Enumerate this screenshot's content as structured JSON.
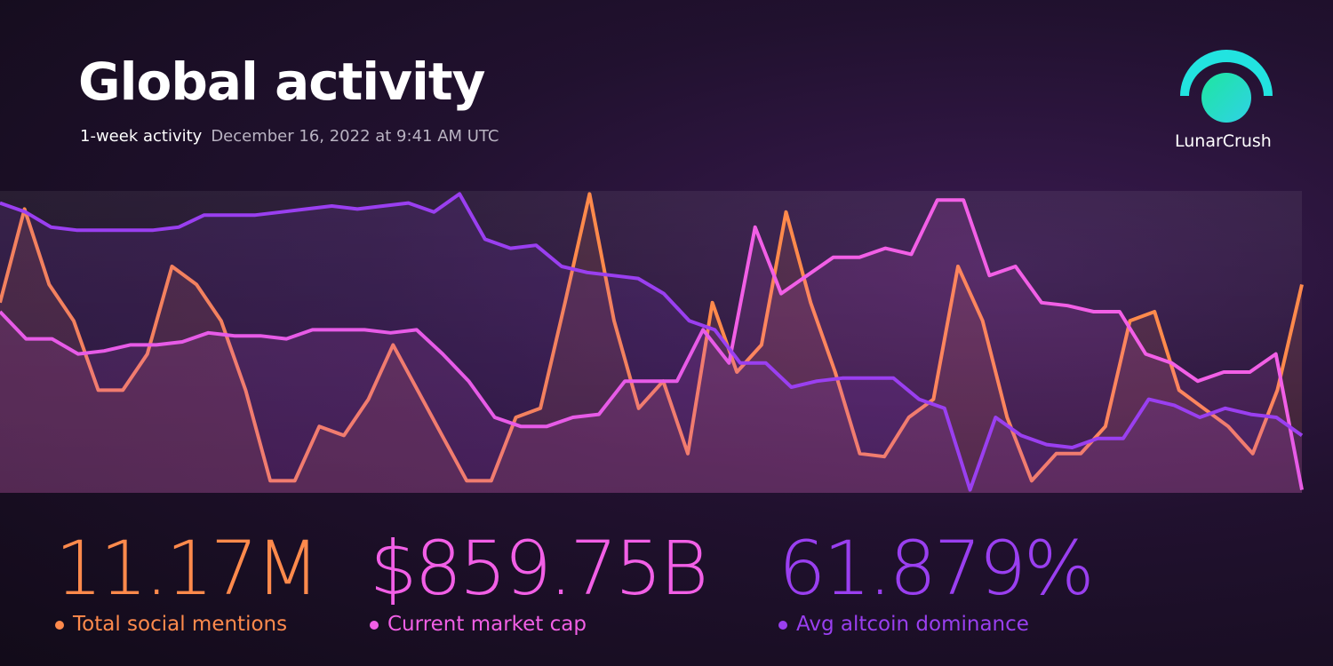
{
  "header": {
    "title": "Global activity",
    "subtitle": "1-week activity",
    "timestamp": "December 16, 2022 at 9:41 AM UTC",
    "brand": "LunarCrush"
  },
  "chart_data": {
    "type": "line",
    "ylim": [
      0,
      100
    ],
    "series": [
      {
        "name": "Total social mentions",
        "color": "#ff8a4c",
        "values": [
          63,
          94,
          69,
          57,
          34,
          34,
          46,
          75,
          69,
          57,
          34,
          4,
          4,
          22,
          19,
          31,
          49,
          34,
          19,
          4,
          4,
          25,
          28,
          63,
          99,
          57,
          28,
          37,
          13,
          63,
          40,
          49,
          93,
          63,
          40,
          13,
          12,
          25,
          31,
          75,
          57,
          25,
          4,
          13,
          13,
          22,
          57,
          60,
          34,
          28,
          22,
          13,
          34,
          69
        ]
      },
      {
        "name": "Current market cap",
        "color": "#f25fe6",
        "values": [
          60,
          51,
          51,
          46,
          47,
          49,
          49,
          50,
          53,
          52,
          52,
          51,
          54,
          54,
          54,
          53,
          54,
          46,
          37,
          25,
          22,
          22,
          25,
          26,
          37,
          37,
          37,
          54,
          43,
          88,
          66,
          72,
          78,
          78,
          81,
          79,
          97,
          97,
          72,
          75,
          63,
          62,
          60,
          60,
          46,
          43,
          37,
          40,
          40,
          46,
          1
        ]
      },
      {
        "name": "Avg altcoin dominance",
        "color": "#9a3ff0",
        "values": [
          96,
          93,
          88,
          87,
          87,
          87,
          87,
          88,
          92,
          92,
          92,
          93,
          94,
          95,
          94,
          95,
          96,
          93,
          99,
          84,
          81,
          82,
          75,
          73,
          72,
          71,
          66,
          57,
          54,
          43,
          43,
          35,
          37,
          38,
          38,
          38,
          31,
          28,
          1,
          25,
          19,
          16,
          15,
          18,
          18,
          31,
          29,
          25,
          28,
          26,
          25,
          19
        ]
      }
    ]
  },
  "stats": [
    {
      "value": "11.17M",
      "label": "Total social mentions"
    },
    {
      "value": "$859.75B",
      "label": "Current market cap"
    },
    {
      "value": "61.879%",
      "label": "Avg altcoin dominance"
    }
  ]
}
